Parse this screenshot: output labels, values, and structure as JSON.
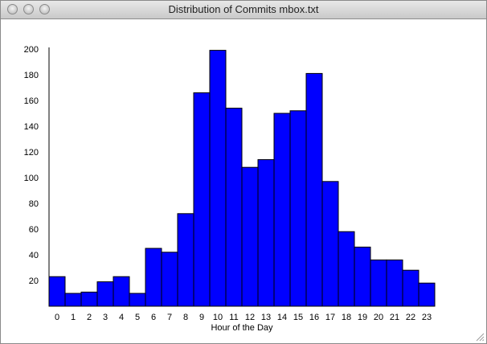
{
  "window": {
    "title": "Distribution of Commits mbox.txt"
  },
  "colors": {
    "bar_fill": "#0000ff",
    "bar_stroke": "#000000"
  },
  "chart_data": {
    "type": "bar",
    "categories": [
      "0",
      "1",
      "2",
      "3",
      "4",
      "5",
      "6",
      "7",
      "8",
      "9",
      "10",
      "11",
      "12",
      "13",
      "14",
      "15",
      "16",
      "17",
      "18",
      "19",
      "20",
      "21",
      "22",
      "23"
    ],
    "values": [
      23,
      10,
      11,
      19,
      23,
      10,
      45,
      42,
      72,
      166,
      199,
      154,
      108,
      114,
      150,
      152,
      181,
      97,
      58,
      46,
      36,
      36,
      28,
      18
    ],
    "y_ticks": [
      "20",
      "40",
      "60",
      "80",
      "100",
      "120",
      "140",
      "160",
      "180",
      "200"
    ],
    "xlabel": "Hour of the Day",
    "ylabel": "",
    "ylim": [
      0,
      200
    ],
    "grid": false
  }
}
